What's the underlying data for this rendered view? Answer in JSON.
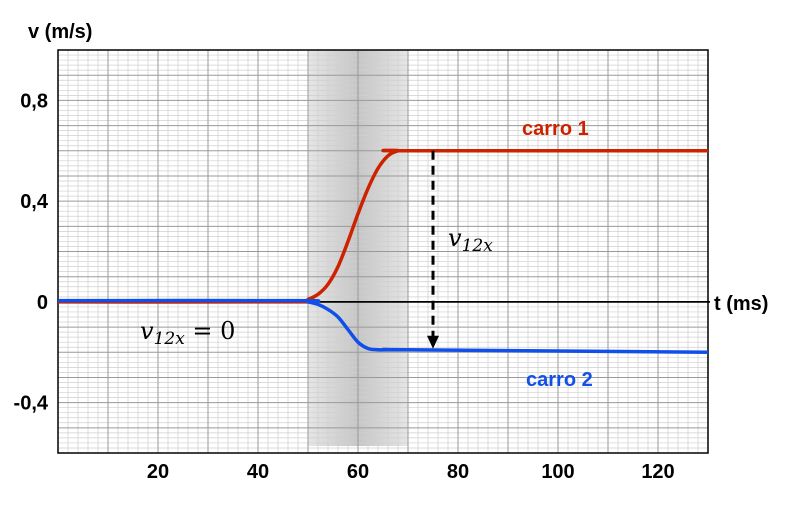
{
  "chart_data": {
    "type": "line",
    "ylabel": "v (m/s)",
    "xlabel": "t (ms)",
    "xlim": [
      0,
      130
    ],
    "ylim": [
      -0.6,
      1.0
    ],
    "x_ticks": [
      20,
      40,
      60,
      80,
      100,
      120
    ],
    "x_tick_labels": [
      "20",
      "40",
      "60",
      "80",
      "100",
      "120"
    ],
    "y_ticks": [
      0.8,
      0.4,
      0,
      -0.4
    ],
    "y_tick_labels": [
      "0,8",
      "0,4",
      "0",
      "-0,4"
    ],
    "grid": true,
    "shaded_interval": [
      50,
      70
    ],
    "series": [
      {
        "name": "carro 1",
        "color": "#cc2200",
        "x": [
          0,
          48,
          50,
          52,
          54,
          56,
          58,
          60,
          62,
          64,
          66,
          68,
          70,
          130
        ],
        "y": [
          0,
          0,
          0.01,
          0.03,
          0.07,
          0.14,
          0.24,
          0.35,
          0.45,
          0.53,
          0.58,
          0.6,
          0.6,
          0.6
        ]
      },
      {
        "name": "carro 2",
        "color": "#1150e8",
        "x": [
          0,
          48,
          50,
          52,
          54,
          56,
          58,
          60,
          62,
          64,
          66,
          68,
          70,
          130
        ],
        "y": [
          0.005,
          0.005,
          0.0,
          -0.01,
          -0.03,
          -0.06,
          -0.11,
          -0.16,
          -0.185,
          -0.19,
          -0.19,
          -0.19,
          -0.19,
          -0.2
        ]
      }
    ],
    "annotations": {
      "difference_arrow": {
        "x": 75,
        "y_from": 0.6,
        "y_to": -0.19
      },
      "v12_label": {
        "base": "v",
        "sub": "12x"
      },
      "v12_zero_label": {
        "base": "v",
        "sub": "12x",
        "rest": " = 0"
      }
    }
  }
}
